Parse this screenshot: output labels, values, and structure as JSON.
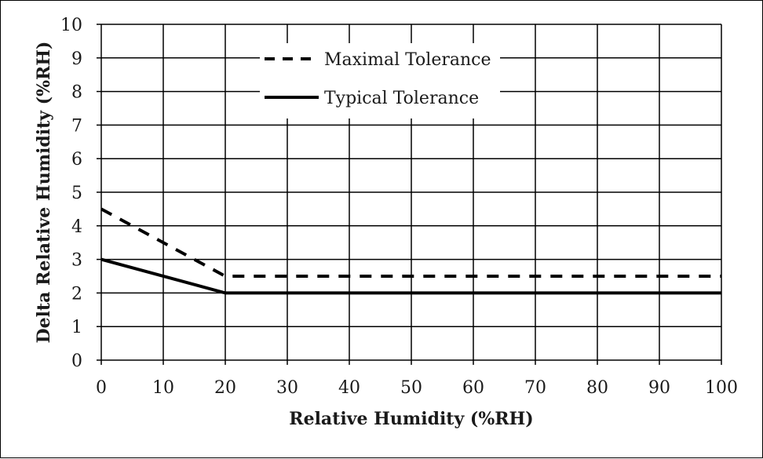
{
  "chart_data": {
    "type": "line",
    "xlabel": "Relative Humidity (%RH)",
    "ylabel": "Delta Relative Humidity (%RH)",
    "xlim": [
      0,
      100
    ],
    "ylim": [
      0,
      10
    ],
    "x_ticks": [
      "0",
      "10",
      "20",
      "30",
      "40",
      "50",
      "60",
      "70",
      "80",
      "90",
      "100"
    ],
    "y_ticks": [
      "0",
      "1",
      "2",
      "3",
      "4",
      "5",
      "6",
      "7",
      "8",
      "9",
      "10"
    ],
    "grid": true,
    "legend_position": "top-center",
    "series": [
      {
        "name": "Maximal Tolerance",
        "style": "dashed",
        "color": "#000000",
        "x": [
          0,
          20,
          100
        ],
        "y": [
          4.5,
          2.5,
          2.5
        ]
      },
      {
        "name": "Typical Tolerance",
        "style": "solid",
        "color": "#000000",
        "x": [
          0,
          20,
          100
        ],
        "y": [
          3,
          2,
          2
        ]
      }
    ]
  }
}
